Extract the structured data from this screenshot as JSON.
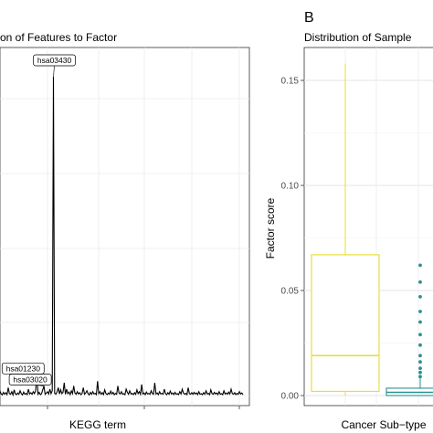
{
  "chart_data": [
    {
      "type": "line",
      "title": "on of Features to Factor",
      "xlabel": "KEGG term",
      "ylabel": "",
      "grid": true,
      "annotations": [
        {
          "label": "hsa03430",
          "x": 51,
          "y": 1.0
        },
        {
          "label": "hsa01230",
          "x": 37,
          "y": 0.065
        },
        {
          "label": "hsa03020",
          "x": 43,
          "y": 0.03
        }
      ],
      "series": [
        {
          "color": "#000000",
          "values": [
            0.005,
            0.012,
            0.003,
            0.02,
            0.008,
            0.004,
            0.015,
            0.006,
            0.002,
            0.01,
            0.004,
            0.009,
            0.003,
            0.025,
            0.006,
            0.004,
            0.012,
            0.002,
            0.018,
            0.005,
            0.003,
            0.008,
            0.004,
            0.015,
            0.006,
            0.002,
            0.011,
            0.004,
            0.007,
            0.003,
            0.02,
            0.005,
            0.009,
            0.004,
            0.012,
            0.006,
            0.015,
            0.065,
            0.004,
            0.01,
            0.003,
            0.006,
            0.018,
            0.03,
            0.004,
            0.008,
            0.012,
            0.005,
            0.02,
            0.006,
            0.015,
            1.0,
            0.007,
            0.004,
            0.012,
            0.025,
            0.005,
            0.018,
            0.006,
            0.01,
            0.04,
            0.004,
            0.02,
            0.006,
            0.011,
            0.003,
            0.015,
            0.006,
            0.03,
            0.008,
            0.004,
            0.012,
            0.005,
            0.009,
            0.003,
            0.007,
            0.025,
            0.004,
            0.008,
            0.015,
            0.006,
            0.002,
            0.01,
            0.004,
            0.012,
            0.005,
            0.007,
            0.003,
            0.045,
            0.006,
            0.012,
            0.004,
            0.009,
            0.003,
            0.018,
            0.006,
            0.003,
            0.008,
            0.004,
            0.014,
            0.005,
            0.01,
            0.003,
            0.007,
            0.004,
            0.03,
            0.008,
            0.005,
            0.012,
            0.004,
            0.006,
            0.003,
            0.02,
            0.01,
            0.004,
            0.015,
            0.005,
            0.007,
            0.003,
            0.009,
            0.004,
            0.018,
            0.006,
            0.012,
            0.004,
            0.035,
            0.005,
            0.008,
            0.003,
            0.011,
            0.005,
            0.007,
            0.004,
            0.015,
            0.006,
            0.004,
            0.04,
            0.005,
            0.008,
            0.003,
            0.012,
            0.005,
            0.007,
            0.004,
            0.02,
            0.006,
            0.003,
            0.009,
            0.004,
            0.014,
            0.005,
            0.008,
            0.003,
            0.01,
            0.004,
            0.006,
            0.003,
            0.012,
            0.005,
            0.02,
            0.008,
            0.004,
            0.007,
            0.003,
            0.025,
            0.006,
            0.004,
            0.009,
            0.004,
            0.01,
            0.005,
            0.008,
            0.003,
            0.012,
            0.004,
            0.006,
            0.003,
            0.009,
            0.004,
            0.015,
            0.005,
            0.007,
            0.003,
            0.018,
            0.006,
            0.004,
            0.01,
            0.005,
            0.008,
            0.003,
            0.012,
            0.004,
            0.006,
            0.003,
            0.015,
            0.005,
            0.008,
            0.004,
            0.011,
            0.005,
            0.02,
            0.006,
            0.004,
            0.009,
            0.003,
            0.007,
            0.004,
            0.012,
            0.005,
            0.008,
            0.003
          ]
        }
      ]
    },
    {
      "type": "box",
      "panel_label": "B",
      "title": "Distribution of Sample",
      "xlabel": "Cancer Sub−type",
      "ylabel": "Factor score",
      "ylim": [
        -0.003,
        0.166
      ],
      "yticks": [
        "0.00",
        "0.05",
        "0.10",
        "0.15"
      ],
      "grid": true,
      "boxes": [
        {
          "color": "#e8dd2a",
          "min": 0.0,
          "q1": 0.002,
          "median": 0.019,
          "q3": 0.067,
          "max": 0.158,
          "outliers": []
        },
        {
          "color": "#2a9190",
          "min": 0.0,
          "q1": 0.0,
          "median": 0.0015,
          "q3": 0.0035,
          "max": 0.0085,
          "outliers": [
            0.062,
            0.054,
            0.047,
            0.04,
            0.035,
            0.029,
            0.024,
            0.019,
            0.016,
            0.013,
            0.011,
            0.009
          ]
        }
      ]
    }
  ]
}
